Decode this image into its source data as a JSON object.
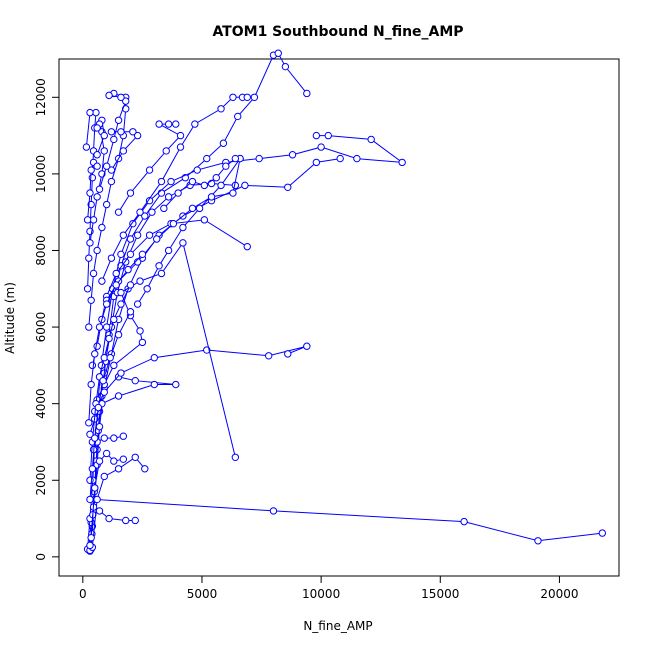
{
  "chart_data": {
    "type": "line",
    "title": "ATOM1 Southbound N_fine_AMP",
    "xlabel": "N_fine_AMP",
    "ylabel": "Altitude (m)",
    "xlim": [
      -1000,
      22500
    ],
    "ylim": [
      -500,
      13000
    ],
    "xticks": [
      "0",
      "5000",
      "10000",
      "15000",
      "20000"
    ],
    "yticks": [
      "0",
      "2000",
      "4000",
      "6000",
      "8000",
      "10000",
      "12000"
    ],
    "xtick_values": [
      0,
      5000,
      10000,
      15000,
      20000
    ],
    "ytick_values": [
      0,
      2000,
      4000,
      6000,
      8000,
      10000,
      12000
    ],
    "grid": false,
    "legend": "none",
    "series_color": "#0000ff",
    "series": [
      {
        "points": [
          [
            300,
            150
          ],
          [
            400,
            800
          ],
          [
            500,
            1800
          ],
          [
            600,
            2800
          ],
          [
            700,
            3800
          ],
          [
            900,
            4800
          ],
          [
            1100,
            5800
          ],
          [
            1300,
            6800
          ],
          [
            1600,
            7600
          ],
          [
            2000,
            8300
          ],
          [
            2600,
            8900
          ],
          [
            3300,
            9500
          ],
          [
            4300,
            9900
          ],
          [
            5200,
            10400
          ],
          [
            5900,
            10800
          ],
          [
            6500,
            11500
          ],
          [
            7200,
            12000
          ],
          [
            8000,
            13100
          ],
          [
            8200,
            13150
          ],
          [
            8500,
            12800
          ],
          [
            9400,
            12100
          ]
        ]
      },
      {
        "points": [
          [
            250,
            180
          ],
          [
            350,
            900
          ],
          [
            480,
            1700
          ],
          [
            560,
            2500
          ],
          [
            650,
            3300
          ],
          [
            800,
            4200
          ],
          [
            950,
            5100
          ],
          [
            1200,
            6000
          ],
          [
            1450,
            6900
          ],
          [
            1800,
            7700
          ],
          [
            2300,
            8400
          ],
          [
            2900,
            9000
          ],
          [
            3600,
            9400
          ],
          [
            4500,
            9700
          ],
          [
            5400,
            9750
          ],
          [
            6400,
            9700
          ]
        ]
      },
      {
        "points": [
          [
            200,
            200
          ],
          [
            300,
            1000
          ],
          [
            420,
            2000
          ],
          [
            500,
            3000
          ],
          [
            620,
            4000
          ],
          [
            780,
            5000
          ],
          [
            1000,
            6000
          ],
          [
            1250,
            7000
          ],
          [
            1600,
            7900
          ],
          [
            2100,
            8700
          ],
          [
            2800,
            9300
          ],
          [
            3700,
            9800
          ],
          [
            4800,
            10100
          ],
          [
            6000,
            10300
          ],
          [
            7400,
            10400
          ],
          [
            8800,
            10500
          ],
          [
            10000,
            10700
          ],
          [
            11500,
            10400
          ],
          [
            13400,
            10300
          ],
          [
            12100,
            10900
          ],
          [
            10300,
            11000
          ],
          [
            9800,
            11000
          ]
        ]
      },
      {
        "points": [
          [
            350,
            200
          ],
          [
            450,
            1200
          ],
          [
            600,
            2400
          ],
          [
            700,
            3400
          ],
          [
            900,
            4400
          ],
          [
            1200,
            5300
          ],
          [
            1500,
            6200
          ],
          [
            1900,
            7000
          ],
          [
            2500,
            7800
          ],
          [
            3200,
            8400
          ],
          [
            4200,
            8900
          ],
          [
            5400,
            9300
          ],
          [
            6800,
            9700
          ],
          [
            8600,
            9650
          ],
          [
            9800,
            10300
          ],
          [
            10800,
            10400
          ]
        ]
      },
      {
        "points": [
          [
            300,
            170
          ],
          [
            380,
            600
          ],
          [
            420,
            1100
          ],
          [
            500,
            1500
          ],
          [
            8000,
            1200
          ],
          [
            16000,
            920
          ],
          [
            19100,
            420
          ],
          [
            21800,
            620
          ]
        ]
      },
      {
        "points": [
          [
            400,
            250
          ],
          [
            600,
            1500
          ],
          [
            900,
            2100
          ],
          [
            1500,
            2300
          ],
          [
            2200,
            2600
          ],
          [
            2600,
            2300
          ]
        ]
      },
      {
        "points": [
          [
            300,
            300
          ],
          [
            450,
            1300
          ],
          [
            700,
            1200
          ],
          [
            1100,
            1000
          ],
          [
            1800,
            950
          ],
          [
            2200,
            950
          ]
        ]
      },
      {
        "points": [
          [
            350,
            500
          ],
          [
            500,
            1800
          ],
          [
            700,
            2500
          ],
          [
            1000,
            2700
          ],
          [
            1300,
            2500
          ],
          [
            1700,
            2550
          ]
        ]
      },
      {
        "points": [
          [
            450,
            2800
          ],
          [
            600,
            3000
          ],
          [
            900,
            3100
          ],
          [
            1300,
            3100
          ],
          [
            1700,
            3150
          ]
        ]
      },
      {
        "points": [
          [
            300,
            3200
          ],
          [
            500,
            3600
          ],
          [
            800,
            4000
          ],
          [
            1500,
            4200
          ],
          [
            3000,
            4500
          ],
          [
            3900,
            4500
          ],
          [
            2200,
            4600
          ],
          [
            1500,
            4700
          ]
        ]
      },
      {
        "points": [
          [
            500,
            3800
          ],
          [
            900,
            4300
          ],
          [
            1600,
            4800
          ],
          [
            3000,
            5200
          ],
          [
            5200,
            5400
          ],
          [
            7800,
            5250
          ],
          [
            9400,
            5500
          ],
          [
            8600,
            5300
          ]
        ]
      },
      {
        "points": [
          [
            600,
            4100
          ],
          [
            900,
            4500
          ],
          [
            1300,
            5000
          ],
          [
            2500,
            5600
          ],
          [
            2400,
            5900
          ],
          [
            2000,
            6300
          ],
          [
            1600,
            6900
          ],
          [
            2400,
            7200
          ],
          [
            3300,
            7400
          ],
          [
            4200,
            8200
          ],
          [
            6400,
            2600
          ]
        ]
      },
      {
        "points": [
          [
            400,
            5000
          ],
          [
            600,
            5500
          ],
          [
            800,
            6200
          ],
          [
            1000,
            6800
          ],
          [
            1400,
            7400
          ],
          [
            2000,
            7900
          ],
          [
            2800,
            8400
          ],
          [
            3700,
            8700
          ],
          [
            5100,
            8800
          ],
          [
            6900,
            8100
          ]
        ]
      },
      {
        "points": [
          [
            250,
            6000
          ],
          [
            350,
            6700
          ],
          [
            450,
            7400
          ],
          [
            600,
            8000
          ],
          [
            800,
            8600
          ],
          [
            1000,
            9200
          ],
          [
            1200,
            9800
          ],
          [
            1500,
            10400
          ],
          [
            1700,
            11000
          ],
          [
            1800,
            11700
          ],
          [
            1800,
            12000
          ],
          [
            1300,
            12100
          ]
        ]
      },
      {
        "points": [
          [
            200,
            7000
          ],
          [
            250,
            7800
          ],
          [
            300,
            8500
          ],
          [
            350,
            9200
          ],
          [
            400,
            9900
          ],
          [
            450,
            10600
          ],
          [
            500,
            11200
          ],
          [
            550,
            11600
          ],
          [
            300,
            11600
          ],
          [
            150,
            10700
          ]
        ]
      },
      {
        "points": [
          [
            300,
            8200
          ],
          [
            450,
            8800
          ],
          [
            600,
            9400
          ],
          [
            800,
            10000
          ],
          [
            900,
            10600
          ],
          [
            700,
            11300
          ],
          [
            800,
            11100
          ]
        ]
      },
      {
        "points": [
          [
            2300,
            6600
          ],
          [
            2700,
            7000
          ],
          [
            3200,
            7600
          ],
          [
            3600,
            8000
          ],
          [
            4200,
            8600
          ],
          [
            4900,
            9100
          ],
          [
            5800,
            9700
          ],
          [
            6600,
            10400
          ]
        ]
      },
      {
        "points": [
          [
            1000,
            6700
          ],
          [
            1500,
            7200
          ],
          [
            2300,
            7700
          ],
          [
            3100,
            8300
          ],
          [
            3800,
            8700
          ],
          [
            4600,
            9100
          ],
          [
            5400,
            9400
          ],
          [
            6300,
            9500
          ],
          [
            6600,
            10400
          ]
        ]
      },
      {
        "points": [
          [
            800,
            7200
          ],
          [
            1200,
            7800
          ],
          [
            1700,
            8400
          ],
          [
            2400,
            9000
          ],
          [
            3300,
            9800
          ],
          [
            4100,
            10700
          ],
          [
            4700,
            11300
          ],
          [
            5800,
            11700
          ],
          [
            6300,
            12000
          ],
          [
            6700,
            12000
          ],
          [
            6900,
            12000
          ]
        ]
      },
      {
        "points": [
          [
            1500,
            9000
          ],
          [
            2000,
            9500
          ],
          [
            2800,
            10100
          ],
          [
            3500,
            10600
          ],
          [
            4100,
            11000
          ],
          [
            3200,
            11300
          ],
          [
            3900,
            11300
          ],
          [
            3600,
            11300
          ]
        ]
      },
      {
        "points": [
          [
            1200,
            10100
          ],
          [
            1700,
            10600
          ],
          [
            2300,
            11000
          ],
          [
            2100,
            11100
          ],
          [
            1600,
            11100
          ],
          [
            1200,
            11100
          ]
        ]
      },
      {
        "points": [
          [
            700,
            9600
          ],
          [
            1000,
            10200
          ],
          [
            1300,
            10900
          ],
          [
            1500,
            11400
          ],
          [
            1800,
            11900
          ],
          [
            1600,
            12000
          ],
          [
            1100,
            12050
          ]
        ]
      },
      {
        "points": [
          [
            600,
            10500
          ],
          [
            900,
            11000
          ],
          [
            800,
            11400
          ],
          [
            700,
            11300
          ],
          [
            600,
            11200
          ]
        ]
      },
      {
        "points": [
          [
            200,
            8800
          ],
          [
            300,
            9500
          ],
          [
            350,
            10100
          ],
          [
            450,
            10300
          ],
          [
            600,
            10200
          ]
        ]
      },
      {
        "points": [
          [
            300,
            2000
          ],
          [
            400,
            3000
          ],
          [
            550,
            4000
          ],
          [
            700,
            4700
          ],
          [
            900,
            5200
          ],
          [
            1100,
            5700
          ],
          [
            1300,
            6200
          ],
          [
            1600,
            6600
          ],
          [
            2000,
            7100
          ]
        ]
      },
      {
        "points": [
          [
            250,
            3500
          ],
          [
            350,
            4500
          ],
          [
            500,
            5300
          ],
          [
            700,
            6000
          ],
          [
            1000,
            6600
          ],
          [
            1400,
            7100
          ],
          [
            1900,
            7500
          ],
          [
            2500,
            7900
          ]
        ]
      },
      {
        "points": [
          [
            300,
            1500
          ],
          [
            400,
            2300
          ],
          [
            500,
            3100
          ],
          [
            650,
            3900
          ],
          [
            850,
            4600
          ],
          [
            1150,
            5200
          ],
          [
            1500,
            5800
          ],
          [
            2000,
            6400
          ]
        ]
      },
      {
        "points": [
          [
            3400,
            9100
          ],
          [
            4000,
            9500
          ],
          [
            4600,
            9800
          ],
          [
            5100,
            9700
          ],
          [
            5600,
            9900
          ],
          [
            6000,
            10200
          ],
          [
            6400,
            10400
          ]
        ]
      }
    ]
  }
}
